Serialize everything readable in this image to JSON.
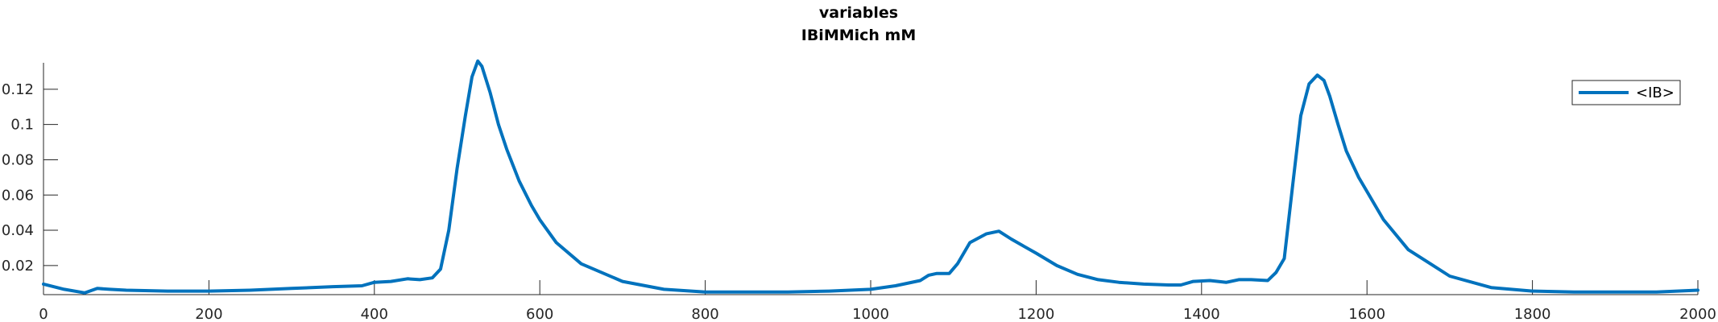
{
  "chart_data": {
    "type": "line",
    "title": "variables",
    "subtitle": "IBiMMich mM",
    "xlabel": "",
    "ylabel": "",
    "xlim": [
      0,
      2000
    ],
    "ylim": [
      0.0035,
      0.135
    ],
    "grid": false,
    "legend_position": "top-right",
    "x_ticks": [
      0,
      200,
      400,
      600,
      800,
      1000,
      1200,
      1400,
      1600,
      1800,
      2000
    ],
    "x_tick_labels": [
      "0",
      "200",
      "400",
      "600",
      "800",
      "1000",
      "1200",
      "1400",
      "1600",
      "1800",
      "2000"
    ],
    "y_ticks": [
      0.02,
      0.04,
      0.06,
      0.08,
      0.1,
      0.12
    ],
    "y_tick_labels": [
      "0.02",
      "0.04",
      "0.06",
      "0.08",
      "0.1",
      "0.12"
    ],
    "series": [
      {
        "name": "<IB>",
        "color": "#0072BD",
        "x": [
          0,
          25,
          50,
          65,
          80,
          100,
          150,
          200,
          250,
          300,
          350,
          385,
          400,
          420,
          440,
          455,
          470,
          480,
          490,
          500,
          510,
          518,
          525,
          530,
          540,
          550,
          560,
          575,
          590,
          600,
          620,
          650,
          700,
          750,
          800,
          850,
          900,
          950,
          1000,
          1030,
          1060,
          1070,
          1080,
          1095,
          1105,
          1120,
          1140,
          1155,
          1170,
          1185,
          1200,
          1225,
          1250,
          1275,
          1300,
          1330,
          1360,
          1375,
          1390,
          1410,
          1430,
          1445,
          1460,
          1480,
          1490,
          1500,
          1510,
          1520,
          1530,
          1540,
          1548,
          1555,
          1565,
          1575,
          1590,
          1600,
          1620,
          1650,
          1700,
          1750,
          1800,
          1850,
          1900,
          1950,
          2000
        ],
        "y": [
          0.0095,
          0.0065,
          0.0045,
          0.007,
          0.0065,
          0.006,
          0.0055,
          0.0055,
          0.006,
          0.007,
          0.008,
          0.0085,
          0.0105,
          0.011,
          0.0125,
          0.012,
          0.013,
          0.018,
          0.04,
          0.075,
          0.105,
          0.127,
          0.136,
          0.133,
          0.118,
          0.1,
          0.086,
          0.068,
          0.054,
          0.046,
          0.033,
          0.021,
          0.011,
          0.0065,
          0.005,
          0.005,
          0.005,
          0.0055,
          0.0065,
          0.0085,
          0.0115,
          0.0145,
          0.0155,
          0.0155,
          0.021,
          0.033,
          0.038,
          0.0395,
          0.035,
          0.031,
          0.027,
          0.02,
          0.015,
          0.012,
          0.0105,
          0.0095,
          0.009,
          0.009,
          0.011,
          0.0115,
          0.0105,
          0.012,
          0.012,
          0.0115,
          0.016,
          0.024,
          0.065,
          0.105,
          0.123,
          0.128,
          0.125,
          0.116,
          0.1,
          0.085,
          0.07,
          0.062,
          0.046,
          0.029,
          0.014,
          0.0075,
          0.0055,
          0.005,
          0.005,
          0.005,
          0.006
        ]
      }
    ]
  }
}
